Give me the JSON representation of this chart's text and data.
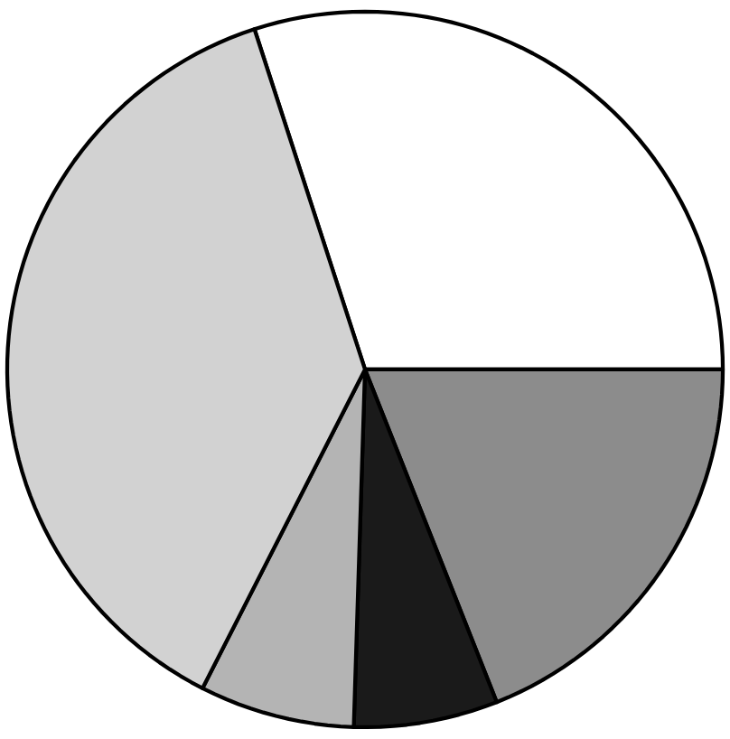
{
  "chart_data": {
    "type": "pie",
    "categories": [
      null,
      null,
      null,
      null,
      null
    ],
    "values": [
      30,
      19,
      6.5,
      7,
      37.5
    ],
    "colors": [
      "#ffffff",
      "#8c8c8c",
      "#1a1a1a",
      "#b4b4b4",
      "#d2d2d2"
    ]
  }
}
